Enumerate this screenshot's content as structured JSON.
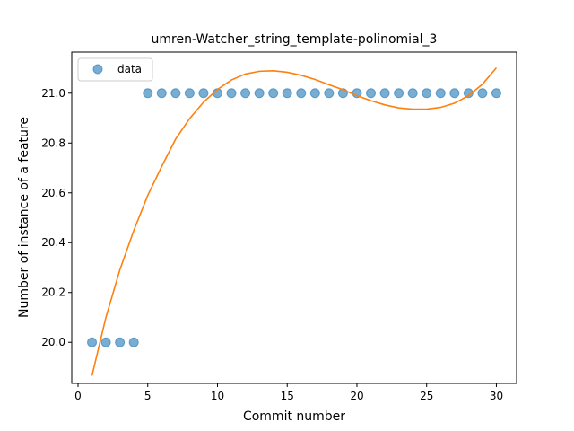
{
  "chart_data": {
    "type": "scatter",
    "title": "umren-Watcher_string_template-polinomial_3",
    "xlabel": "Commit number",
    "ylabel": "Number of instance of a feature",
    "xlim": [
      -0.45,
      31.45
    ],
    "ylim": [
      19.835,
      21.165
    ],
    "xticks": [
      0,
      5,
      10,
      15,
      20,
      25,
      30
    ],
    "yticks": [
      20.0,
      20.2,
      20.4,
      20.6,
      20.8,
      21.0
    ],
    "xtick_labels": [
      "0",
      "5",
      "10",
      "15",
      "20",
      "25",
      "30"
    ],
    "ytick_labels": [
      "20.0",
      "20.2",
      "20.4",
      "20.6",
      "20.8",
      "21.0"
    ],
    "grid": false,
    "legend_position": "upper-left",
    "series": [
      {
        "name": "data",
        "kind": "scatter",
        "color": "#1f77b4",
        "x": [
          1,
          2,
          3,
          4,
          5,
          6,
          7,
          8,
          9,
          10,
          11,
          12,
          13,
          14,
          15,
          16,
          17,
          18,
          19,
          20,
          21,
          22,
          23,
          24,
          25,
          26,
          27,
          28,
          29,
          30
        ],
        "y": [
          20,
          20,
          20,
          20,
          21,
          21,
          21,
          21,
          21,
          21,
          21,
          21,
          21,
          21,
          21,
          21,
          21,
          21,
          21,
          21,
          21,
          21,
          21,
          21,
          21,
          21,
          21,
          21,
          21,
          21
        ]
      },
      {
        "kind": "line",
        "color": "#ff7f0e",
        "x": [
          1,
          2,
          3,
          4,
          5,
          6,
          7,
          8,
          9,
          10,
          11,
          12,
          13,
          14,
          15,
          16,
          17,
          18,
          19,
          20,
          21,
          22,
          23,
          24,
          25,
          26,
          27,
          28,
          29,
          30
        ],
        "y": [
          19.866,
          20.1,
          20.291,
          20.449,
          20.59,
          20.706,
          20.816,
          20.898,
          20.964,
          21.015,
          21.053,
          21.077,
          21.088,
          21.09,
          21.084,
          21.072,
          21.055,
          21.034,
          21.014,
          20.99,
          20.97,
          20.953,
          20.941,
          20.936,
          20.936,
          20.943,
          20.96,
          20.99,
          21.036,
          21.102
        ]
      }
    ]
  }
}
